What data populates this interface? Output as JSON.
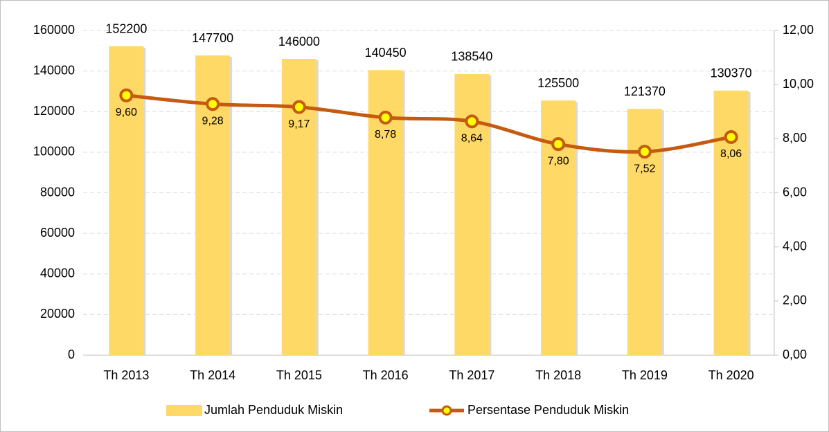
{
  "chart_data": {
    "type": "bar",
    "categories": [
      "Th 2013",
      "Th 2014",
      "Th 2015",
      "Th 2016",
      "Th 2017",
      "Th 2018",
      "Th 2019",
      "Th 2020"
    ],
    "series": [
      {
        "name": "Jumlah Penduduk Miskin",
        "type": "bar",
        "color": "#ffd966",
        "values": [
          152200,
          147700,
          146000,
          140450,
          138540,
          125500,
          121370,
          130370
        ]
      },
      {
        "name": "Persentase Penduduk Miskin",
        "type": "line",
        "axis": "y2",
        "color": "#c55a11",
        "marker_color": "#ffff00",
        "values": [
          9.6,
          9.28,
          9.17,
          8.78,
          8.64,
          7.8,
          7.52,
          8.06
        ],
        "value_labels": [
          "9,60",
          "9,28",
          "9,17",
          "8,78",
          "8,64",
          "7,80",
          "7,52",
          "8,06"
        ]
      }
    ],
    "ylim": [
      0,
      160000
    ],
    "yticks": [
      0,
      20000,
      40000,
      60000,
      80000,
      100000,
      120000,
      140000,
      160000
    ],
    "y2lim": [
      0,
      12
    ],
    "y2ticks": [
      {
        "value": 0,
        "label": "0,00"
      },
      {
        "value": 2,
        "label": "2,00"
      },
      {
        "value": 4,
        "label": "4,00"
      },
      {
        "value": 6,
        "label": "6,00"
      },
      {
        "value": 8,
        "label": "8,00"
      },
      {
        "value": 10,
        "label": "10,00"
      },
      {
        "value": 12,
        "label": "12,00"
      }
    ],
    "grid": true,
    "legend": "bottom"
  }
}
